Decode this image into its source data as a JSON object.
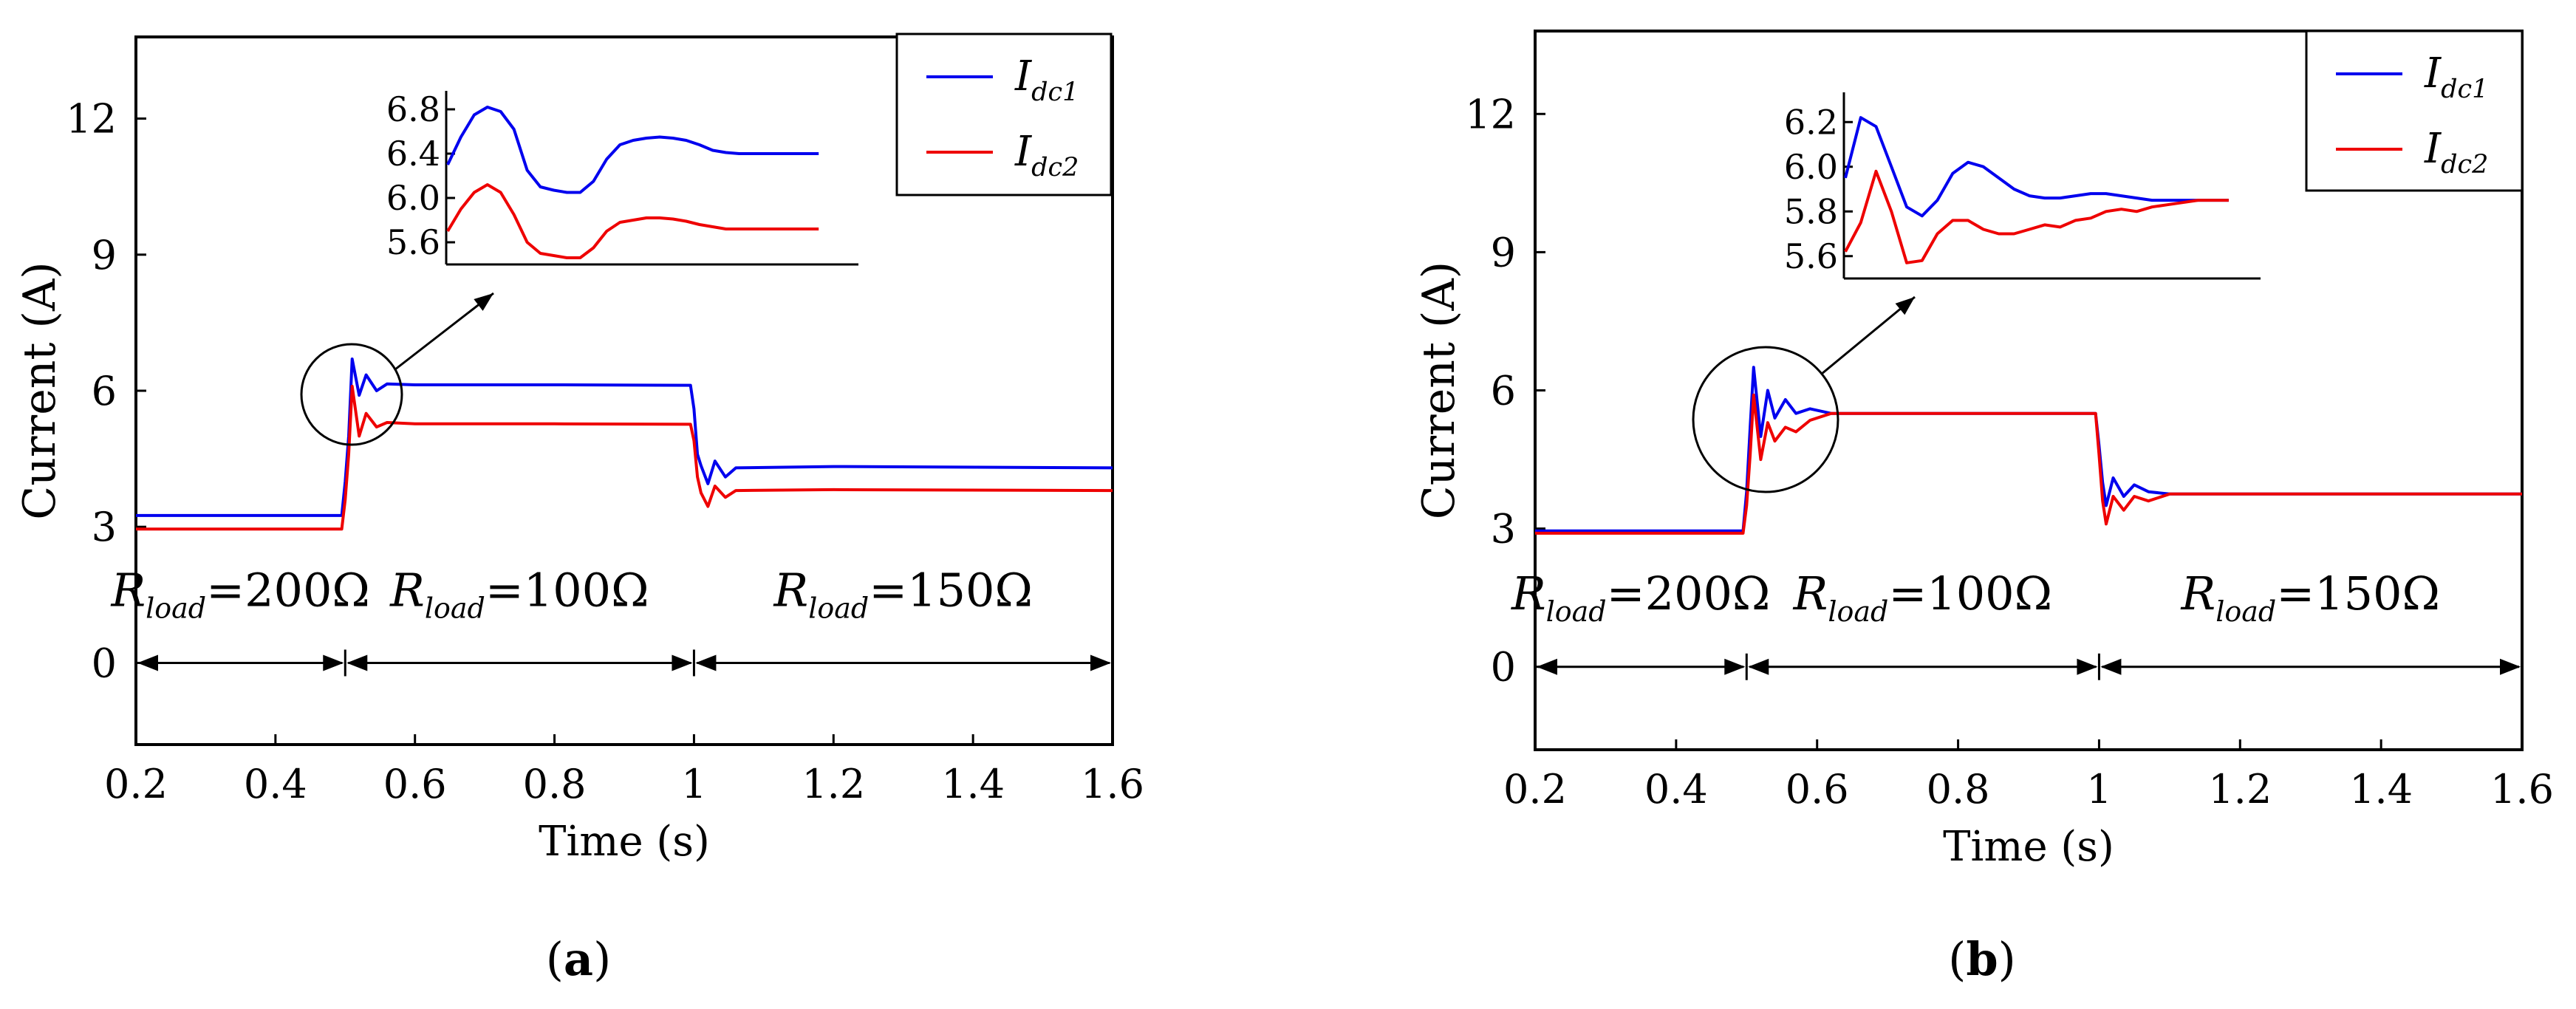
{
  "chart_data": [
    {
      "panel_label": "a",
      "type": "line",
      "xlabel": "Time (s)",
      "ylabel": "Current (A)",
      "xlim": [
        0.2,
        1.6
      ],
      "ylim": [
        -1.8,
        13.8
      ],
      "x_ticks": [
        0.2,
        0.4,
        0.6,
        0.8,
        1,
        1.2,
        1.4,
        1.6
      ],
      "y_ticks": [
        0,
        3,
        6,
        9,
        12
      ],
      "x_tick_labels": [
        "0.2",
        "0.4",
        "0.6",
        "0.8",
        "1",
        "1.2",
        "1.4",
        "1.6"
      ],
      "y_tick_labels": [
        "0",
        "3",
        "6",
        "9",
        "12"
      ],
      "legend": {
        "placement": "top-right",
        "entries": [
          {
            "name": "I",
            "sub": "dc1"
          },
          {
            "name": "I",
            "sub": "dc2"
          }
        ]
      },
      "regions": [
        {
          "name": "R",
          "sub": "load",
          "value": "=200Ω",
          "x_start": 0.2,
          "x_end": 0.5
        },
        {
          "name": "R",
          "sub": "load",
          "value": "=100Ω",
          "x_start": 0.5,
          "x_end": 1.0
        },
        {
          "name": "R",
          "sub": "load",
          "value": "=150Ω",
          "x_start": 1.0,
          "x_end": 1.6
        }
      ],
      "series": [
        {
          "name": "Idc1",
          "color": "#0000ee",
          "x": [
            0.2,
            0.495,
            0.5,
            0.505,
            0.51,
            0.52,
            0.53,
            0.545,
            0.56,
            0.6,
            0.8,
            0.995,
            1.0,
            1.005,
            1.01,
            1.02,
            1.03,
            1.045,
            1.06,
            1.2,
            1.6
          ],
          "y": [
            3.25,
            3.25,
            4.0,
            5.0,
            6.7,
            5.9,
            6.35,
            6.0,
            6.15,
            6.13,
            6.13,
            6.12,
            5.6,
            4.6,
            4.35,
            3.95,
            4.45,
            4.1,
            4.3,
            4.33,
            4.3
          ]
        },
        {
          "name": "Idc2",
          "color": "#ee0000",
          "x": [
            0.2,
            0.495,
            0.5,
            0.505,
            0.51,
            0.52,
            0.53,
            0.545,
            0.56,
            0.6,
            0.8,
            0.995,
            1.0,
            1.005,
            1.01,
            1.02,
            1.03,
            1.045,
            1.06,
            1.2,
            1.6
          ],
          "y": [
            2.95,
            2.95,
            3.6,
            4.6,
            6.1,
            5.0,
            5.5,
            5.2,
            5.3,
            5.27,
            5.27,
            5.26,
            4.9,
            4.1,
            3.75,
            3.45,
            3.9,
            3.65,
            3.8,
            3.82,
            3.8
          ]
        }
      ],
      "inset": {
        "ylim": [
          5.4,
          6.9
        ],
        "y_ticks": [
          5.6,
          6.0,
          6.4,
          6.8
        ],
        "y_tick_labels": [
          "5.6",
          "6.0",
          "6.4",
          "6.8"
        ],
        "series": [
          {
            "name": "Idc1",
            "color": "#0000ee",
            "values": [
              6.3,
              6.55,
              6.75,
              6.82,
              6.78,
              6.62,
              6.25,
              6.1,
              6.07,
              6.05,
              6.05,
              6.15,
              6.35,
              6.48,
              6.52,
              6.54,
              6.55,
              6.54,
              6.52,
              6.48,
              6.43,
              6.41,
              6.4,
              6.4,
              6.4,
              6.4,
              6.4,
              6.4,
              6.4
            ]
          },
          {
            "name": "Idc2",
            "color": "#ee0000",
            "values": [
              5.7,
              5.9,
              6.05,
              6.12,
              6.05,
              5.85,
              5.6,
              5.5,
              5.48,
              5.46,
              5.46,
              5.55,
              5.7,
              5.78,
              5.8,
              5.82,
              5.82,
              5.81,
              5.79,
              5.76,
              5.74,
              5.72,
              5.72,
              5.72,
              5.72,
              5.72,
              5.72,
              5.72,
              5.72
            ]
          }
        ]
      }
    },
    {
      "panel_label": "b",
      "type": "line",
      "xlabel": "Time (s)",
      "ylabel": "Current (A)",
      "xlim": [
        0.2,
        1.6
      ],
      "ylim": [
        -1.8,
        13.8
      ],
      "x_ticks": [
        0.2,
        0.4,
        0.6,
        0.8,
        1,
        1.2,
        1.4,
        1.6
      ],
      "y_ticks": [
        0,
        3,
        6,
        9,
        12
      ],
      "x_tick_labels": [
        "0.2",
        "0.4",
        "0.6",
        "0.8",
        "1",
        "1.2",
        "1.4",
        "1.6"
      ],
      "y_tick_labels": [
        "0",
        "3",
        "6",
        "9",
        "12"
      ],
      "legend": {
        "placement": "top-right",
        "entries": [
          {
            "name": "I",
            "sub": "dc1"
          },
          {
            "name": "I",
            "sub": "dc2"
          }
        ]
      },
      "regions": [
        {
          "name": "R",
          "sub": "load",
          "value": "=200Ω",
          "x_start": 0.2,
          "x_end": 0.5
        },
        {
          "name": "R",
          "sub": "load",
          "value": "=100Ω",
          "x_start": 0.5,
          "x_end": 1.0
        },
        {
          "name": "R",
          "sub": "load",
          "value": "=150Ω",
          "x_start": 1.0,
          "x_end": 1.6
        }
      ],
      "series": [
        {
          "name": "Idc1",
          "color": "#0000ee",
          "x": [
            0.2,
            0.495,
            0.5,
            0.505,
            0.51,
            0.52,
            0.53,
            0.54,
            0.555,
            0.57,
            0.59,
            0.62,
            0.8,
            0.995,
            1.0,
            1.005,
            1.01,
            1.02,
            1.035,
            1.05,
            1.07,
            1.1,
            1.2,
            1.6
          ],
          "y": [
            2.95,
            2.95,
            3.8,
            5.2,
            6.5,
            5.0,
            6.0,
            5.4,
            5.8,
            5.5,
            5.6,
            5.5,
            5.5,
            5.5,
            4.8,
            4.0,
            3.5,
            4.1,
            3.7,
            3.95,
            3.8,
            3.75,
            3.75,
            3.75
          ]
        },
        {
          "name": "Idc2",
          "color": "#ee0000",
          "x": [
            0.2,
            0.495,
            0.5,
            0.505,
            0.51,
            0.52,
            0.53,
            0.54,
            0.555,
            0.57,
            0.59,
            0.62,
            0.8,
            0.995,
            1.0,
            1.005,
            1.01,
            1.02,
            1.035,
            1.05,
            1.07,
            1.1,
            1.2,
            1.6
          ],
          "y": [
            2.9,
            2.9,
            3.5,
            4.6,
            5.9,
            4.5,
            5.3,
            4.9,
            5.2,
            5.1,
            5.35,
            5.5,
            5.5,
            5.5,
            4.6,
            3.6,
            3.1,
            3.7,
            3.4,
            3.7,
            3.6,
            3.75,
            3.75,
            3.75
          ]
        }
      ],
      "inset": {
        "ylim": [
          5.5,
          6.3
        ],
        "y_ticks": [
          5.6,
          5.8,
          6.0,
          6.2
        ],
        "y_tick_labels": [
          "5.6",
          "5.8",
          "6.0",
          "6.2"
        ],
        "series": [
          {
            "name": "Idc1",
            "color": "#0000ee",
            "values": [
              5.95,
              6.22,
              6.18,
              6.0,
              5.82,
              5.78,
              5.85,
              5.97,
              6.02,
              6.0,
              5.95,
              5.9,
              5.87,
              5.86,
              5.86,
              5.87,
              5.88,
              5.88,
              5.87,
              5.86,
              5.85,
              5.85,
              5.85,
              5.85,
              5.85,
              5.85
            ]
          },
          {
            "name": "Idc2",
            "color": "#ee0000",
            "values": [
              5.62,
              5.75,
              5.98,
              5.8,
              5.57,
              5.58,
              5.7,
              5.76,
              5.76,
              5.72,
              5.7,
              5.7,
              5.72,
              5.74,
              5.73,
              5.76,
              5.77,
              5.8,
              5.81,
              5.8,
              5.82,
              5.83,
              5.84,
              5.85,
              5.85,
              5.85
            ]
          }
        ]
      }
    }
  ]
}
